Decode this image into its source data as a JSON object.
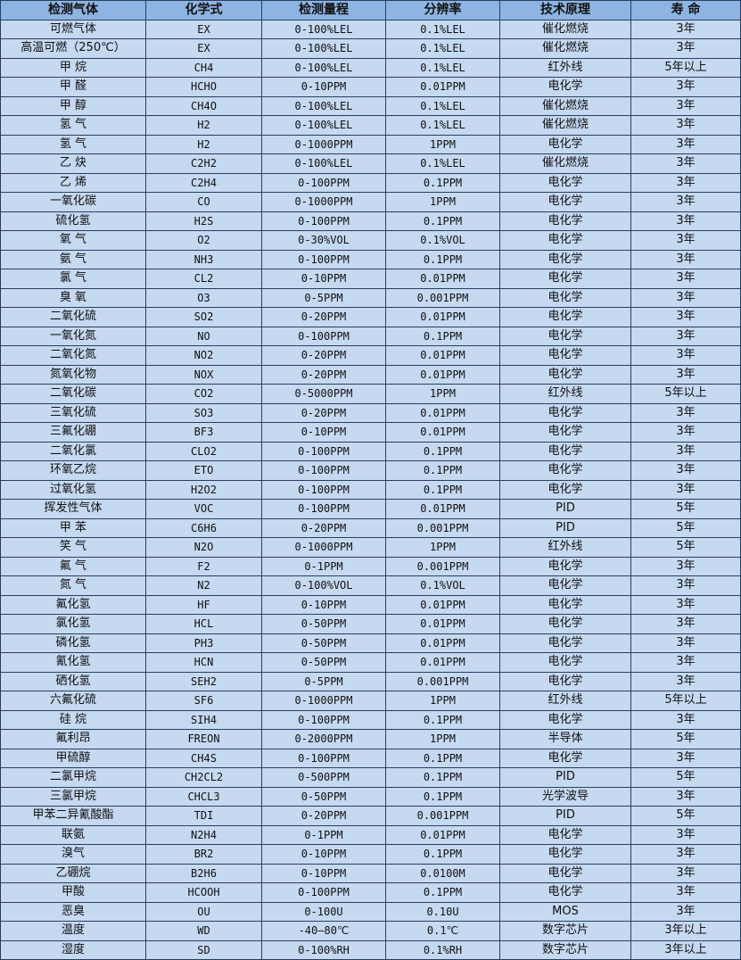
{
  "colors": {
    "header_bg": "#8db4e2",
    "row_bg": "#c5d9f1",
    "border": "#2a3f5f"
  },
  "table": {
    "headers": [
      "检测气体",
      "化学式",
      "检测量程",
      "分辨率",
      "技术原理",
      "寿 命"
    ],
    "rows": [
      [
        "可燃气体",
        "EX",
        "0-100%LEL",
        "0.1%LEL",
        "催化燃烧",
        "3年"
      ],
      [
        "高温可燃（250℃）",
        "EX",
        "0-100%LEL",
        "0.1%LEL",
        "催化燃烧",
        "3年"
      ],
      [
        "甲 烷",
        "CH4",
        "0-100%LEL",
        "0.1%LEL",
        "红外线",
        "5年以上"
      ],
      [
        "甲 醛",
        "HCHO",
        "0-10PPM",
        "0.01PPM",
        "电化学",
        "3年"
      ],
      [
        "甲 醇",
        "CH4O",
        "0-100%LEL",
        "0.1%LEL",
        "催化燃烧",
        "3年"
      ],
      [
        "氢 气",
        "H2",
        "0-100%LEL",
        "0.1%LEL",
        "催化燃烧",
        "3年"
      ],
      [
        "氢 气",
        "H2",
        "0-1000PPM",
        "1PPM",
        "电化学",
        "3年"
      ],
      [
        "乙 炔",
        "C2H2",
        "0-100%LEL",
        "0.1%LEL",
        "催化燃烧",
        "3年"
      ],
      [
        "乙 烯",
        "C2H4",
        "0-100PPM",
        "0.1PPM",
        "电化学",
        "3年"
      ],
      [
        "一氧化碳",
        "CO",
        "0-1000PPM",
        "1PPM",
        "电化学",
        "3年"
      ],
      [
        "硫化氢",
        "H2S",
        "0-100PPM",
        "0.1PPM",
        "电化学",
        "3年"
      ],
      [
        "氧 气",
        "O2",
        "0-30%VOL",
        "0.1%VOL",
        "电化学",
        "3年"
      ],
      [
        "氨 气",
        "NH3",
        "0-100PPM",
        "0.1PPM",
        "电化学",
        "3年"
      ],
      [
        "氯 气",
        "CL2",
        "0-10PPM",
        "0.01PPM",
        "电化学",
        "3年"
      ],
      [
        "臭 氧",
        "O3",
        "0-5PPM",
        "0.001PPM",
        "电化学",
        "3年"
      ],
      [
        "二氧化硫",
        "SO2",
        "0-20PPM",
        "0.01PPM",
        "电化学",
        "3年"
      ],
      [
        "一氧化氮",
        "NO",
        "0-100PPM",
        "0.1PPM",
        "电化学",
        "3年"
      ],
      [
        "二氧化氮",
        "NO2",
        "0-20PPM",
        "0.01PPM",
        "电化学",
        "3年"
      ],
      [
        "氮氧化物",
        "NOX",
        "0-20PPM",
        "0.01PPM",
        "电化学",
        "3年"
      ],
      [
        "二氧化碳",
        "CO2",
        "0-5000PPM",
        "1PPM",
        "红外线",
        "5年以上"
      ],
      [
        "三氧化硫",
        "SO3",
        "0-20PPM",
        "0.01PPM",
        "电化学",
        "3年"
      ],
      [
        "三氟化硼",
        "BF3",
        "0-10PPM",
        "0.01PPM",
        "电化学",
        "3年"
      ],
      [
        "二氧化氯",
        "CLO2",
        "0-100PPM",
        "0.1PPM",
        "电化学",
        "3年"
      ],
      [
        "环氧乙烷",
        "ETO",
        "0-100PPM",
        "0.1PPM",
        "电化学",
        "3年"
      ],
      [
        "过氧化氢",
        "H2O2",
        "0-100PPM",
        "0.1PPM",
        "电化学",
        "3年"
      ],
      [
        "挥发性气体",
        "VOC",
        "0-100PPM",
        "0.01PPM",
        "PID",
        "5年"
      ],
      [
        "甲 苯",
        "C6H6",
        "0-20PPM",
        "0.001PPM",
        "PID",
        "5年"
      ],
      [
        "笑 气",
        "N2O",
        "0-1000PPM",
        "1PPM",
        "红外线",
        "5年"
      ],
      [
        "氟 气",
        "F2",
        "0-1PPM",
        "0.001PPM",
        "电化学",
        "3年"
      ],
      [
        "氮 气",
        "N2",
        "0-100%VOL",
        "0.1%VOL",
        "电化学",
        "3年"
      ],
      [
        "氟化氢",
        "HF",
        "0-10PPM",
        "0.01PPM",
        "电化学",
        "3年"
      ],
      [
        "氯化氢",
        "HCL",
        "0-50PPM",
        "0.01PPM",
        "电化学",
        "3年"
      ],
      [
        "磷化氢",
        "PH3",
        "0-50PPM",
        "0.01PPM",
        "电化学",
        "3年"
      ],
      [
        "氰化氢",
        "HCN",
        "0-50PPM",
        "0.01PPM",
        "电化学",
        "3年"
      ],
      [
        "硒化氢",
        "SEH2",
        "0-5PPM",
        "0.001PPM",
        "电化学",
        "3年"
      ],
      [
        "六氟化硫",
        "SF6",
        "0-1000PPM",
        "1PPM",
        "红外线",
        "5年以上"
      ],
      [
        "硅 烷",
        "SIH4",
        "0-100PPM",
        "0.1PPM",
        "电化学",
        "3年"
      ],
      [
        "氟利昂",
        "FREON",
        "0-2000PPM",
        "1PPM",
        "半导体",
        "5年"
      ],
      [
        "甲硫醇",
        "CH4S",
        "0-100PPM",
        "0.1PPM",
        "电化学",
        "3年"
      ],
      [
        "二氯甲烷",
        "CH2CL2",
        "0-500PPM",
        "0.1PPM",
        "PID",
        "5年"
      ],
      [
        "三氯甲烷",
        "CHCL3",
        "0-50PPM",
        "0.1PPM",
        "光学波导",
        "3年"
      ],
      [
        "甲苯二异氰酸酯",
        "TDI",
        "0-20PPM",
        "0.001PPM",
        "PID",
        "5年"
      ],
      [
        "联氨",
        "N2H4",
        "0-1PPM",
        "0.01PPM",
        "电化学",
        "3年"
      ],
      [
        "溴气",
        "BR2",
        "0-10PPM",
        "0.1PPM",
        "电化学",
        "3年"
      ],
      [
        "乙硼烷",
        "B2H6",
        "0-10PPM",
        "0.0100M",
        "电化学",
        "3年"
      ],
      [
        "甲酸",
        "HCOOH",
        "0-100PPM",
        "0.1PPM",
        "电化学",
        "3年"
      ],
      [
        "恶臭",
        "OU",
        "0-100U",
        "0.10U",
        "MOS",
        "3年"
      ],
      [
        "温度",
        "WD",
        "-40—80℃",
        "0.1℃",
        "数字芯片",
        "3年以上"
      ],
      [
        "湿度",
        "SD",
        "0-100%RH",
        "0.1%RH",
        "数字芯片",
        "3年以上"
      ]
    ]
  }
}
